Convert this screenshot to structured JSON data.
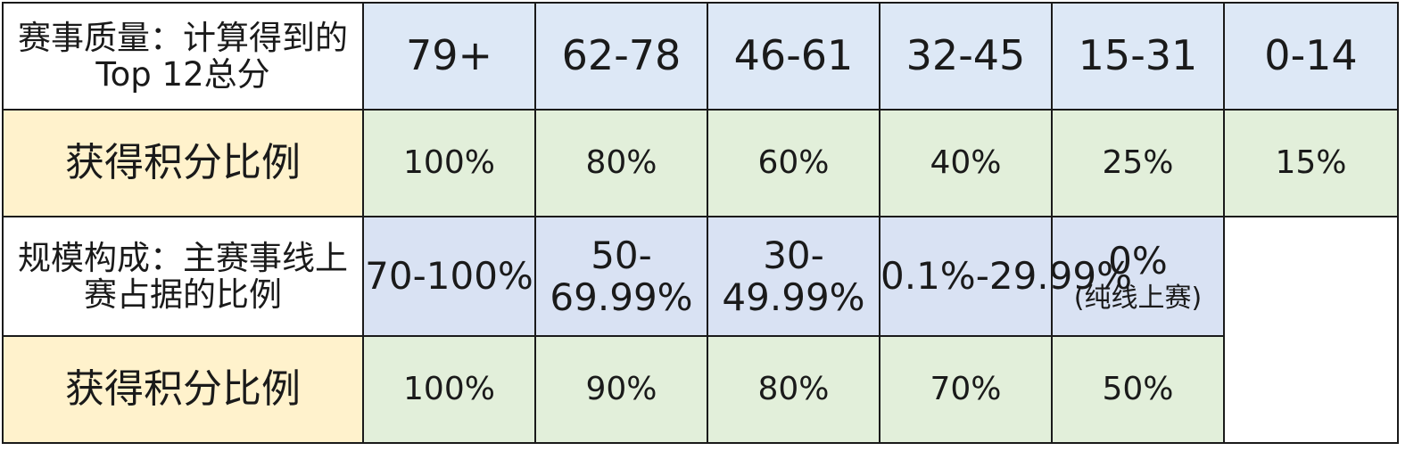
{
  "quality": {
    "label": "赛事质量：计算得到的Top 12总分",
    "ranges": [
      "79+",
      "62-78",
      "46-61",
      "32-45",
      "15-31",
      "0-14"
    ],
    "points_label": "获得积分比例",
    "percents": [
      "100%",
      "80%",
      "60%",
      "40%",
      "25%",
      "15%"
    ]
  },
  "scale": {
    "label": "规模构成：主赛事线上赛占据的比例",
    "ranges": [
      "70-100%",
      "50-69.99%",
      "30-49.99%",
      "0.1%-29.99%",
      "0%"
    ],
    "last_note": "(纯线上赛)",
    "points_label": "获得积分比例",
    "percents": [
      "100%",
      "90%",
      "80%",
      "70%",
      "50%"
    ]
  },
  "colors": {
    "label_yellow": "#fff2cc",
    "header_blue": "#dde8f6",
    "value_green": "#e2efda"
  }
}
